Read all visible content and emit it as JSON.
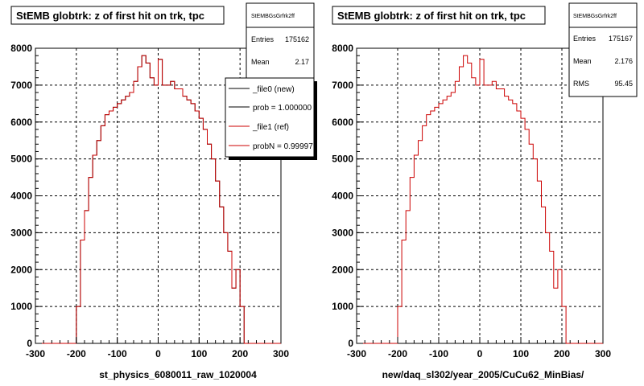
{
  "chart_data": [
    {
      "type": "step-histogram",
      "title": "StEMB globtrk: z of first hit on trk, tpc",
      "xlabel": "st_physics_6080011_raw_1020004",
      "xlim": [
        -300,
        300
      ],
      "ylim": [
        0,
        8000
      ],
      "x_ticks": [
        "-300",
        "-200",
        "-100",
        "0",
        "100",
        "200",
        "300"
      ],
      "y_ticks": [
        "0",
        "1000",
        "2000",
        "3000",
        "4000",
        "5000",
        "6000",
        "7000",
        "8000"
      ],
      "grid": true,
      "bin_width": 10,
      "bin_edges_x": [
        -200,
        -190,
        -180,
        -170,
        -160,
        -150,
        -140,
        -130,
        -120,
        -110,
        -100,
        -90,
        -80,
        -70,
        -60,
        -50,
        -40,
        -30,
        -20,
        -10,
        0,
        10,
        20,
        30,
        40,
        50,
        60,
        70,
        80,
        90,
        100,
        110,
        120,
        130,
        140,
        150,
        160,
        170,
        180,
        190,
        200,
        210
      ],
      "values": [
        1000,
        2800,
        3600,
        4500,
        5100,
        5500,
        5900,
        6200,
        6300,
        6400,
        6500,
        6600,
        6700,
        6800,
        7100,
        7500,
        7800,
        7600,
        7200,
        7000,
        7700,
        7000,
        7000,
        7100,
        6900,
        6900,
        6700,
        6600,
        6500,
        6300,
        6100,
        5800,
        5400,
        5000,
        4400,
        3700,
        3000,
        2500,
        1500,
        2000,
        1000
      ],
      "stats": {
        "name": "StEMBGsGrfrk2ff",
        "entries_label": "Entries",
        "entries": "175162",
        "mean_label": "Mean",
        "mean": "2.17"
      },
      "legend": {
        "placement": "top-right",
        "entries": [
          {
            "label": "_file0 (new)",
            "color": "#000000"
          },
          {
            "label": "prob = 1.000000",
            "color": "#000000"
          },
          {
            "label": "_file1 (ref)",
            "color": "#cc0000"
          },
          {
            "label": "probN = 0.99997",
            "color": "#cc0000"
          }
        ]
      },
      "colors": {
        "new": "#000000",
        "ref": "#cc0000"
      }
    },
    {
      "type": "step-histogram",
      "title": "StEMB globtrk: z of first hit on trk, tpc",
      "xlabel": "new/daq_sl302/year_2005/CuCu62_MinBias/",
      "xlim": [
        -300,
        300
      ],
      "ylim": [
        0,
        8000
      ],
      "x_ticks": [
        "-300",
        "-200",
        "-100",
        "0",
        "100",
        "200",
        "300"
      ],
      "y_ticks": [
        "0",
        "1000",
        "2000",
        "3000",
        "4000",
        "5000",
        "6000",
        "7000",
        "8000"
      ],
      "grid": true,
      "bin_width": 10,
      "bin_edges_x": [
        -200,
        -190,
        -180,
        -170,
        -160,
        -150,
        -140,
        -130,
        -120,
        -110,
        -100,
        -90,
        -80,
        -70,
        -60,
        -50,
        -40,
        -30,
        -20,
        -10,
        0,
        10,
        20,
        30,
        40,
        50,
        60,
        70,
        80,
        90,
        100,
        110,
        120,
        130,
        140,
        150,
        160,
        170,
        180,
        190,
        200,
        210
      ],
      "values": [
        1000,
        2800,
        3600,
        4500,
        5100,
        5500,
        5900,
        6200,
        6300,
        6400,
        6500,
        6600,
        6700,
        6800,
        7100,
        7500,
        7800,
        7600,
        7200,
        7000,
        7700,
        7000,
        7000,
        7100,
        6900,
        6900,
        6700,
        6600,
        6500,
        6300,
        6100,
        5800,
        5400,
        5000,
        4400,
        3700,
        3000,
        2500,
        1500,
        2000,
        1000
      ],
      "stats": {
        "name": "StEMBGsGrfrk2ff",
        "entries_label": "Entries",
        "entries": "175167",
        "mean_label": "Mean",
        "mean": "2.176",
        "rms_label": "RMS",
        "rms": "95.45"
      },
      "colors": {
        "ref": "#cc0000"
      }
    }
  ]
}
